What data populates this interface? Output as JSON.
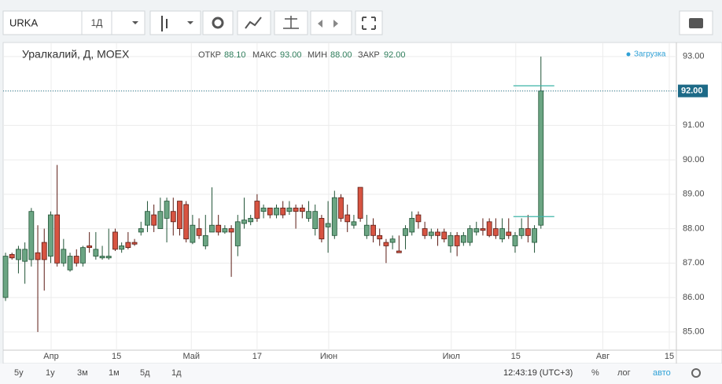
{
  "toolbar": {
    "symbol": "URKA",
    "interval": "1Д"
  },
  "chart_data": {
    "type": "candlestick",
    "title": "Уралкалий, Д, MOEX",
    "legend": {
      "open_label": "ОТКР",
      "open": "88.10",
      "high_label": "МАКС",
      "high": "93.00",
      "low_label": "МИН",
      "low": "88.00",
      "close_label": "ЗАКР",
      "close": "92.00"
    },
    "status": "Загрузка",
    "open": [
      86,
      87.25,
      87.1,
      87.05,
      87.1,
      87.3,
      87.6,
      87.2,
      88.4,
      87.0,
      86.8,
      87.2,
      87.0,
      87.5,
      87.2,
      87.15,
      87.15,
      87.9,
      87.4,
      87.6,
      87.6,
      87.9,
      88.1,
      88.4,
      88.0,
      88.3,
      88.5,
      88.8,
      88.7,
      87.6,
      88.0,
      87.5,
      87.9,
      88.1,
      87.9,
      88.0,
      87.5,
      88.15,
      88.2,
      88.8,
      88.5,
      88.6,
      88.4,
      88.6,
      88.5,
      88.6,
      88.6,
      88.3,
      88.0,
      88.3,
      88.05,
      87.8,
      88.9,
      88.4,
      88.1,
      89.2,
      87.8,
      88.1,
      87.8,
      87.6,
      87.6,
      87.35,
      87.8,
      87.9,
      88.4,
      88.0,
      87.8,
      87.9,
      87.9,
      87.5,
      87.8,
      87.6,
      87.6,
      87.9,
      88.0,
      88.2,
      88.0,
      87.7,
      87.9,
      87.5,
      87.8,
      88.0,
      87.6,
      88.1
    ],
    "high": [
      87.3,
      87.3,
      87.5,
      87.6,
      88.6,
      88.1,
      88.0,
      88.5,
      89.85,
      87.7,
      87.3,
      87.4,
      87.5,
      87.9,
      87.9,
      87.5,
      88.0,
      88.0,
      87.6,
      87.9,
      87.7,
      88.2,
      88.8,
      88.7,
      88.9,
      88.9,
      88.9,
      88.8,
      88.8,
      88.4,
      88.3,
      88.4,
      89.2,
      88.4,
      88.1,
      88.1,
      88.4,
      88.9,
      88.4,
      89.0,
      88.7,
      88.6,
      88.7,
      88.8,
      88.8,
      88.7,
      88.7,
      88.8,
      88.7,
      88.4,
      88.8,
      89.1,
      89.0,
      88.7,
      88.4,
      89.2,
      88.4,
      88.3,
      88.0,
      87.7,
      87.8,
      87.8,
      88.1,
      88.5,
      88.5,
      88.2,
      88.0,
      88.0,
      88.0,
      87.9,
      87.9,
      87.9,
      88.1,
      88.2,
      88.3,
      88.3,
      88.3,
      88.3,
      88.3,
      87.9,
      88.3,
      88.4,
      88.1,
      93.0
    ],
    "low": [
      85.9,
      87.1,
      86.7,
      86.4,
      86.9,
      85.0,
      86.2,
      87.0,
      86.9,
      86.9,
      86.75,
      86.9,
      86.9,
      87.3,
      87.1,
      87.1,
      87.1,
      87.35,
      87.3,
      87.4,
      87.5,
      87.8,
      87.9,
      87.9,
      88.0,
      87.6,
      87.8,
      87.8,
      87.6,
      87.55,
      87.7,
      87.4,
      87.9,
      87.8,
      87.85,
      86.6,
      87.2,
      88.0,
      88.1,
      88.2,
      88.3,
      88.3,
      88.3,
      88.3,
      88.4,
      88.0,
      88.3,
      88.2,
      87.8,
      87.6,
      87.3,
      87.7,
      88.2,
      87.9,
      88.0,
      88.2,
      87.7,
      87.6,
      87.5,
      87.0,
      87.4,
      87.3,
      87.4,
      87.8,
      88.0,
      87.7,
      87.7,
      87.5,
      87.6,
      87.3,
      87.2,
      87.5,
      87.5,
      87.8,
      87.8,
      87.75,
      87.7,
      87.6,
      87.7,
      87.3,
      87.7,
      87.6,
      87.3,
      88.0
    ],
    "close": [
      87.2,
      87.15,
      87.4,
      87.4,
      88.5,
      87.1,
      87.1,
      88.4,
      87.0,
      87.4,
      87.2,
      87.0,
      87.45,
      87.45,
      87.4,
      87.2,
      87.2,
      87.4,
      87.5,
      87.45,
      87.55,
      88.0,
      88.5,
      88.1,
      88.5,
      88.8,
      88.2,
      88.0,
      87.7,
      88.1,
      87.8,
      87.8,
      88.1,
      87.9,
      88.0,
      87.9,
      88.2,
      88.25,
      88.3,
      88.3,
      88.6,
      88.4,
      88.6,
      88.4,
      88.6,
      88.5,
      88.5,
      88.5,
      88.5,
      87.7,
      88.15,
      88.9,
      88.3,
      88.2,
      88.2,
      88.3,
      88.1,
      87.8,
      87.7,
      87.5,
      87.7,
      87.3,
      88.0,
      88.3,
      88.2,
      87.8,
      87.9,
      87.8,
      87.7,
      87.8,
      87.5,
      87.8,
      88.0,
      88.0,
      87.95,
      87.8,
      87.8,
      88.0,
      87.8,
      87.8,
      88.0,
      87.8,
      88.0,
      92.0
    ],
    "up_color": "#6ba583",
    "down_color": "#d75442",
    "xlim": [
      -0.37,
      104
    ],
    "xticks": [
      {
        "value": 7.07,
        "label": "Апр"
      },
      {
        "value": 17.2,
        "label": "15"
      },
      {
        "value": 28.8,
        "label": "Май"
      },
      {
        "value": 39,
        "label": "17"
      },
      {
        "value": 50.1,
        "label": "Июн"
      },
      {
        "value": 69.1,
        "label": "Июл"
      },
      {
        "value": 79.1,
        "label": "15"
      },
      {
        "value": 92.6,
        "label": "Авг"
      },
      {
        "value": 102.9,
        "label": "15"
      }
    ],
    "ylim": [
      84.47,
      93.27
    ],
    "yticks": [
      {
        "value": 85,
        "label": "85.00"
      },
      {
        "value": 86,
        "label": "86.00"
      },
      {
        "value": 87,
        "label": "87.00"
      },
      {
        "value": 88,
        "label": "88.00"
      },
      {
        "value": 89,
        "label": "89.00"
      },
      {
        "value": 90,
        "label": "90.00"
      },
      {
        "value": 91,
        "label": "91.00"
      },
      {
        "value": 92,
        "label": "92.00"
      },
      {
        "value": 93,
        "label": "93.00"
      }
    ],
    "grid": true,
    "last_price": {
      "value": 92,
      "label": "92.00"
    },
    "level_lines": [
      92.15,
      88.35
    ]
  },
  "footer": {
    "ranges": [
      "5y",
      "1y",
      "3м",
      "1м",
      "5д",
      "1д"
    ],
    "time": "12:43:19 (UTC+3)",
    "percent": "%",
    "log": "лог",
    "auto": "авто"
  }
}
